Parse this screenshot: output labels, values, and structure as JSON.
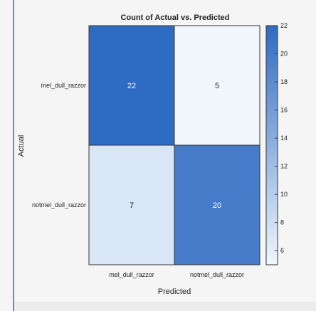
{
  "chart_data": {
    "type": "heatmap",
    "title": "Count of Actual vs. Predicted",
    "xlabel": "Predicted",
    "ylabel": "Actual",
    "x_categories": [
      "mel_dull_razzor",
      "notmel_dull_razzor"
    ],
    "y_categories": [
      "mel_dull_razzor",
      "notmel_dull_razzor"
    ],
    "values": [
      [
        22,
        5
      ],
      [
        7,
        20
      ]
    ],
    "colorbar": {
      "range": [
        5,
        22
      ],
      "ticks": [
        6,
        8,
        10,
        12,
        14,
        16,
        18,
        20,
        22
      ],
      "color_low": "#f0f6fc",
      "color_high": "#2e6bc2"
    }
  }
}
